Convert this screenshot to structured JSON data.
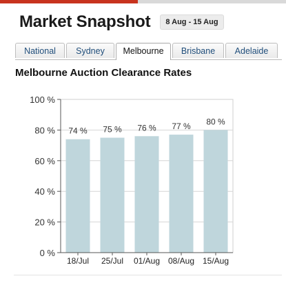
{
  "header": {
    "title": "Market Snapshot",
    "date_range": "8 Aug - 15 Aug"
  },
  "tabs": [
    {
      "label": "National",
      "active": false
    },
    {
      "label": "Sydney",
      "active": false
    },
    {
      "label": "Melbourne",
      "active": true
    },
    {
      "label": "Brisbane",
      "active": false
    },
    {
      "label": "Adelaide",
      "active": false
    }
  ],
  "colors": {
    "accent": "#c8331e",
    "bar": "#bfd6dc",
    "grid": "#d6d6d6"
  },
  "chart_data": {
    "type": "bar",
    "title": "Melbourne Auction Clearance Rates",
    "categories": [
      "18/Jul",
      "25/Jul",
      "01/Aug",
      "08/Aug",
      "15/Aug"
    ],
    "values": [
      74,
      75,
      76,
      77,
      80
    ],
    "data_labels": [
      "74 %",
      "75 %",
      "76 %",
      "77 %",
      "80 %"
    ],
    "ylim": [
      0,
      100
    ],
    "yticks": [
      0,
      20,
      40,
      60,
      80,
      100
    ],
    "ytick_labels": [
      "0 %",
      "20 %",
      "40 %",
      "60 %",
      "80 %",
      "100 %"
    ],
    "grid": true
  }
}
